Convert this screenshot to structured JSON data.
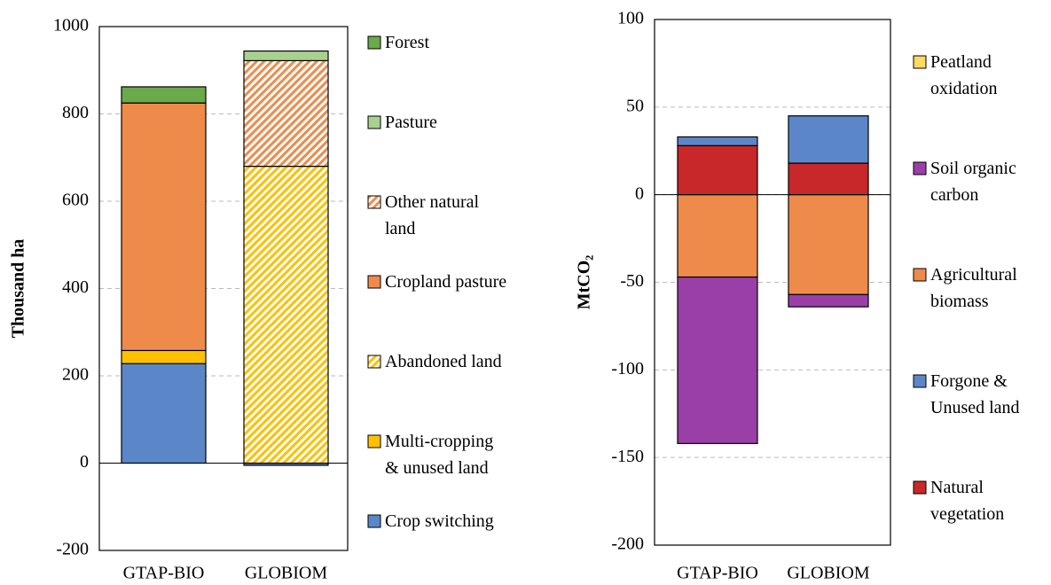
{
  "chart_data": [
    {
      "type": "stacked_bar",
      "ylabel": "Thousand ha",
      "categories": [
        "GTAP-BIO",
        "GLOBIOM"
      ],
      "ylim": [
        -200,
        1000
      ],
      "yticks": [
        -200,
        0,
        200,
        400,
        600,
        800,
        1000
      ],
      "grid": true,
      "series": [
        {
          "name": "Crop switching",
          "color": "#5b87c8",
          "values": [
            228,
            -5
          ]
        },
        {
          "name": "Multi-cropping\n& unused land",
          "color": "#ffc000",
          "values": [
            30,
            0
          ]
        },
        {
          "name": "Abandoned land",
          "color": "#ffc000",
          "hatch": true,
          "values": [
            0,
            680
          ]
        },
        {
          "name": "Cropland pasture",
          "color": "#ee8b4b",
          "values": [
            567,
            0
          ]
        },
        {
          "name": "Other natural\nland",
          "color": "#ee8b4b",
          "hatch": true,
          "values": [
            0,
            242
          ]
        },
        {
          "name": "Pasture",
          "color": "#a9d18e",
          "values": [
            0,
            22
          ]
        },
        {
          "name": "Forest",
          "color": "#6aaa4a",
          "values": [
            37,
            0
          ]
        }
      ]
    },
    {
      "type": "stacked_bar",
      "ylabel": "MtCO₂",
      "categories": [
        "GTAP-BIO",
        "GLOBIOM"
      ],
      "ylim": [
        -200,
        100
      ],
      "yticks": [
        -200,
        -150,
        -100,
        -50,
        0,
        50,
        100
      ],
      "grid": true,
      "series": [
        {
          "name": "Natural\nvegetation",
          "color": "#c8282a",
          "values": [
            28,
            18
          ]
        },
        {
          "name": "Forgone &\nUnused land",
          "color": "#5b87c8",
          "values": [
            5,
            27
          ]
        },
        {
          "name": "Agricultural\nbiomass",
          "color": "#ee8b4b",
          "values": [
            -47,
            -57
          ]
        },
        {
          "name": "Soil organic\ncarbon",
          "color": "#9b3fa8",
          "values": [
            -95,
            -7
          ]
        },
        {
          "name": "Peatland\noxidation",
          "color": "#ffd966",
          "values": [
            0,
            0
          ]
        }
      ]
    }
  ]
}
